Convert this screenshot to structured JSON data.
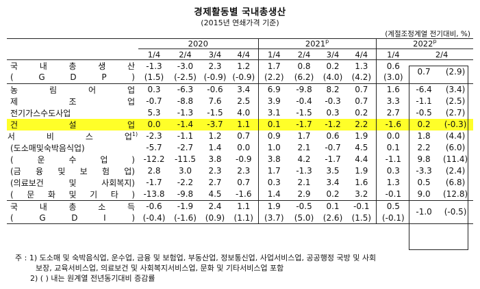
{
  "title": "경제활동별 국내총생산",
  "subtitle": "(2015년 연쇄가격 기준)",
  "unit": "(계절조정계열 전기대비, %)",
  "years": [
    {
      "label": "2020",
      "sup": ""
    },
    {
      "label": "2021",
      "sup": "p"
    },
    {
      "label": "2022",
      "sup": "p"
    }
  ],
  "quarters": [
    "1/4",
    "2/4",
    "3/4",
    "4/4",
    "1/4",
    "2/4",
    "3/4",
    "4/4",
    "1/4",
    "2/4"
  ],
  "rows": [
    {
      "label": "국 내 총 생 산",
      "values": [
        "-1.3",
        "-3.0",
        "2.3",
        "1.2",
        "1.7",
        "0.8",
        "0.2",
        "1.3",
        "0.6",
        "0.7",
        "(2.9)"
      ],
      "merge": true
    },
    {
      "label": "( G D P )",
      "values": [
        "(1.5)",
        "(-2.5)",
        "(-0.9)",
        "(-0.9)",
        "(2.2)",
        "(6.2)",
        "(4.0)",
        "(4.2)",
        "(3.0)"
      ],
      "merge": false
    },
    {
      "label": "농 림 어 업",
      "values": [
        "0.3",
        "-6.3",
        "-0.6",
        "3.4",
        "6.9",
        "-9.8",
        "8.2",
        "0.7",
        "1.6",
        "-6.4",
        "(3.4)"
      ]
    },
    {
      "label": "제 조 업",
      "values": [
        "-0.7",
        "-8.8",
        "7.6",
        "2.5",
        "3.9",
        "-0.4",
        "-0.3",
        "0.7",
        "3.3",
        "-1.1",
        "(2.5)"
      ]
    },
    {
      "label": "전기가스수도사업",
      "values": [
        "5.3",
        "-1.3",
        "-1.5",
        "4.0",
        "3.1",
        "-1.5",
        "0.3",
        "0.2",
        "2.7",
        "-0.5",
        "(2.7)"
      ]
    },
    {
      "label": "건 설 업",
      "values": [
        "0.0",
        "-1.4",
        "-3.7",
        "1.1",
        "0.1",
        "-1.7",
        "-1.2",
        "2.2",
        "-1.6",
        "0.2",
        "(-0.3)"
      ],
      "highlight": true
    },
    {
      "label": "서 비 스 업",
      "sup": "1)",
      "values": [
        "-2.3",
        "-1.1",
        "1.2",
        "0.7",
        "0.9",
        "1.7",
        "0.6",
        "1.9",
        "0.0",
        "1.8",
        "(4.4)"
      ]
    },
    {
      "label": "(도소매및숙박음식업)",
      "values": [
        "-5.7",
        "-2.7",
        "1.4",
        "0.0",
        "1.0",
        "2.1",
        "-0.7",
        "4.5",
        "0.1",
        "2.2",
        "(6.0)"
      ]
    },
    {
      "label": "( 운 수 업 )",
      "values": [
        "-12.2",
        "-11.5",
        "3.8",
        "-0.9",
        "3.8",
        "4.2",
        "-1.7",
        "4.4",
        "-1.1",
        "9.8",
        "(11.4)"
      ]
    },
    {
      "label": "(금 융 및 보 험 업)",
      "values": [
        "2.8",
        "3.0",
        "2.3",
        "2.3",
        "1.7",
        "-1.3",
        "3.5",
        "1.9",
        "0.3",
        "-3.3",
        "(2.4)"
      ]
    },
    {
      "label": "(의료보건 및 사회복지)",
      "values": [
        "-1.7",
        "-2.2",
        "2.7",
        "0.7",
        "0.3",
        "2.1",
        "3.4",
        "1.6",
        "1.3",
        "0.5",
        "(6.8)"
      ]
    },
    {
      "label": "( 문 화 및 기 타 )",
      "values": [
        "-13.8",
        "-9.8",
        "4.5",
        "-1.6",
        "1.4",
        "2.9",
        "0.2",
        "3.2",
        "-0.1",
        "9.0",
        "(12.8)"
      ]
    },
    {
      "label": "국 내 총 소 득",
      "values": [
        "-0.6",
        "-1.9",
        "2.4",
        "1.1",
        "1.9",
        "-0.5",
        "0.1",
        "-0.1",
        "0.5",
        "-1.0",
        "(-0.5)"
      ],
      "merge": true
    },
    {
      "label": "( G D I )",
      "values": [
        "(-0.4)",
        "(-1.6)",
        "(0.9)",
        "(1.1)",
        "(3.7)",
        "(5.0)",
        "(2.6)",
        "(1.5)",
        "(-0.1)"
      ],
      "merge": false
    }
  ],
  "notes": {
    "line1": "주 : 1) 도소매 및 숙박음식업, 운수업, 금융 및 보험업, 부동산업, 정보통신업, 사업서비스업, 공공행정 국방 및 사회",
    "line2": "보장, 교육서비스업, 의료보건 및 사회복지서비스업, 문화 및 기타서비스업 포함",
    "line3": "2) ( ) 내는 원계열 전년동기대비 증감률"
  }
}
